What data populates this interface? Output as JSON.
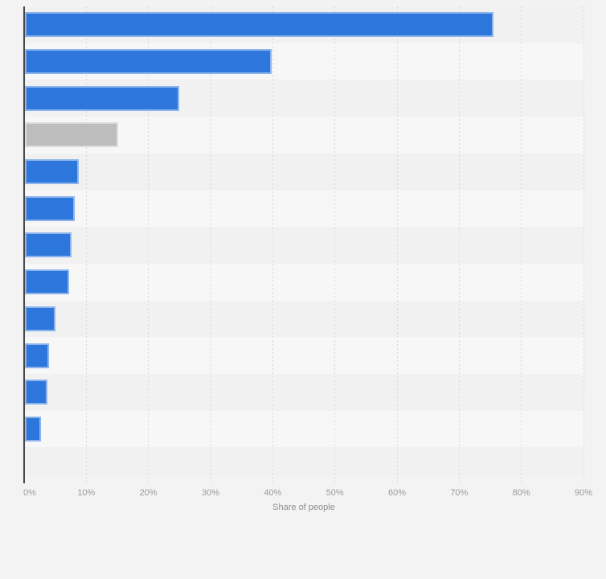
{
  "page": {
    "background_color": "#f3f3f4"
  },
  "chart_data": {
    "type": "bar",
    "orientation": "horizontal",
    "title": "",
    "xlabel": "Share of people",
    "values": [
      75.5,
      39.8,
      24.9,
      15.1,
      8.8,
      8.2,
      7.6,
      7.2,
      5.1,
      4.0,
      3.7,
      2.7
    ],
    "xlim": [
      0,
      90
    ],
    "x_tick_labels": [
      "0%",
      "10%",
      "20%",
      "30%",
      "40%",
      "50%",
      "60%",
      "70%",
      "80%",
      "90%"
    ],
    "grid": "vertical-dashed-every-10pct",
    "legend": "none",
    "bar_color": "#2d77dc",
    "highlight_bar_index": 3,
    "highlight_bar_color": "#bdbdbd",
    "row_band_color_dark": "#f1f1f2",
    "row_band_color_light": "#f7f7f8",
    "gridline_color": "#d6d7d9",
    "axis_line_color": "#47484a",
    "tick_label_color": "#9b9b9b",
    "axis_title_color": "#8d8d8d"
  }
}
